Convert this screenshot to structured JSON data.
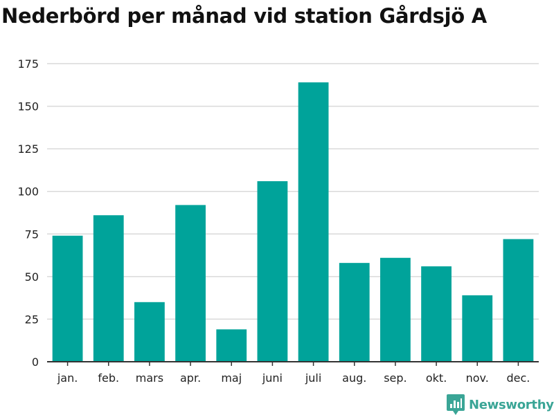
{
  "title": "Nederbörd per månad vid station Gårdsjö A",
  "colors": {
    "bar": "#00a39a",
    "grid": "#d9d9d9",
    "axis": "#333333",
    "brand": "#3aa596"
  },
  "brand": {
    "name": "Newsworthy",
    "icon": "bar-chart-badge-icon"
  },
  "chart_data": {
    "type": "bar",
    "categories": [
      "jan.",
      "feb.",
      "mars",
      "apr.",
      "maj",
      "juni",
      "juli",
      "aug.",
      "sep.",
      "okt.",
      "nov.",
      "dec."
    ],
    "values": [
      74,
      86,
      35,
      92,
      19,
      106,
      164,
      58,
      61,
      56,
      39,
      72
    ],
    "title": "Nederbörd per månad vid station Gårdsjö A",
    "xlabel": "",
    "ylabel": "",
    "ylim": [
      0,
      175
    ],
    "yticks": [
      0,
      25,
      50,
      75,
      100,
      125,
      150,
      175
    ],
    "grid": true,
    "legend": "none"
  }
}
